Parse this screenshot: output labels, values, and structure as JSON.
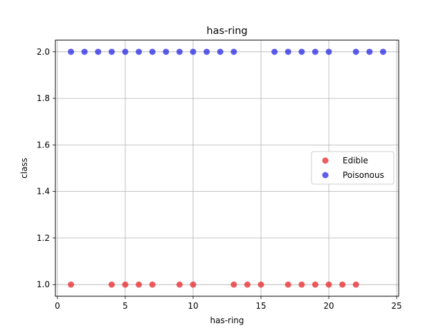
{
  "chart_data": {
    "type": "scatter",
    "title": "has-ring",
    "xlabel": "has-ring",
    "ylabel": "class",
    "xlim": [
      -0.15,
      25.15
    ],
    "ylim": [
      0.95,
      2.05
    ],
    "xticks": [
      0,
      5,
      10,
      15,
      20,
      25
    ],
    "yticks": [
      1.0,
      1.2,
      1.4,
      1.6,
      1.8,
      2.0
    ],
    "xtick_labels": [
      "0",
      "5",
      "10",
      "15",
      "20",
      "25"
    ],
    "ytick_labels": [
      "1.0",
      "1.2",
      "1.4",
      "1.6",
      "1.8",
      "2.0"
    ],
    "grid": true,
    "legend_position": "center-right",
    "series": [
      {
        "name": "Edible",
        "color": "#e8262a",
        "points": [
          {
            "x": 1,
            "y": 1.0
          },
          {
            "x": 4,
            "y": 1.0
          },
          {
            "x": 5,
            "y": 1.0
          },
          {
            "x": 6,
            "y": 1.0
          },
          {
            "x": 7,
            "y": 1.0
          },
          {
            "x": 9,
            "y": 1.0
          },
          {
            "x": 10,
            "y": 1.0
          },
          {
            "x": 13,
            "y": 1.0
          },
          {
            "x": 14,
            "y": 1.0
          },
          {
            "x": 15,
            "y": 1.0
          },
          {
            "x": 17,
            "y": 1.0
          },
          {
            "x": 18,
            "y": 1.0
          },
          {
            "x": 19,
            "y": 1.0
          },
          {
            "x": 20,
            "y": 1.0
          },
          {
            "x": 21,
            "y": 1.0
          },
          {
            "x": 22,
            "y": 1.0
          }
        ]
      },
      {
        "name": "Poisonous",
        "color": "#2727e6",
        "points": [
          {
            "x": 1,
            "y": 2.0
          },
          {
            "x": 2,
            "y": 2.0
          },
          {
            "x": 3,
            "y": 2.0
          },
          {
            "x": 4,
            "y": 2.0
          },
          {
            "x": 5,
            "y": 2.0
          },
          {
            "x": 6,
            "y": 2.0
          },
          {
            "x": 7,
            "y": 2.0
          },
          {
            "x": 8,
            "y": 2.0
          },
          {
            "x": 9,
            "y": 2.0
          },
          {
            "x": 10,
            "y": 2.0
          },
          {
            "x": 11,
            "y": 2.0
          },
          {
            "x": 12,
            "y": 2.0
          },
          {
            "x": 13,
            "y": 2.0
          },
          {
            "x": 16,
            "y": 2.0
          },
          {
            "x": 17,
            "y": 2.0
          },
          {
            "x": 18,
            "y": 2.0
          },
          {
            "x": 19,
            "y": 2.0
          },
          {
            "x": 20,
            "y": 2.0
          },
          {
            "x": 22,
            "y": 2.0
          },
          {
            "x": 23,
            "y": 2.0
          },
          {
            "x": 24,
            "y": 2.0
          }
        ]
      }
    ]
  }
}
